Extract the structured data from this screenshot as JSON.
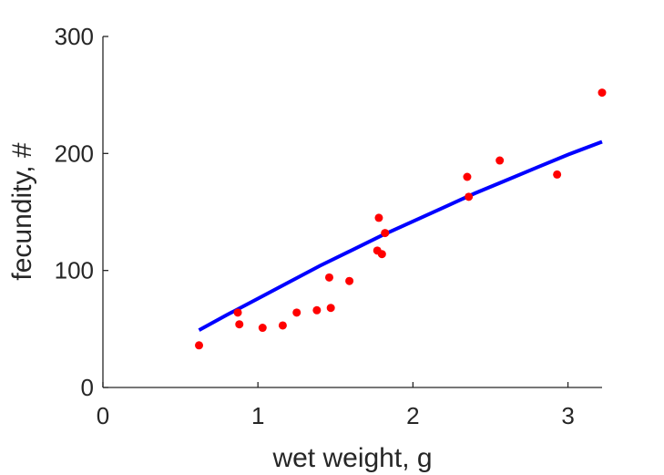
{
  "chart_data": {
    "type": "scatter",
    "xlabel": "wet weight, g",
    "ylabel": "fecundity, #",
    "xlim": [
      0,
      3.22
    ],
    "ylim": [
      0,
      300
    ],
    "xticks": [
      0,
      1,
      2,
      3
    ],
    "yticks": [
      0,
      100,
      200,
      300
    ],
    "grid": false,
    "box": false,
    "series": [
      {
        "kind": "points",
        "color": "#ff0000",
        "x": [
          0.62,
          0.87,
          0.88,
          1.03,
          1.16,
          1.25,
          1.38,
          1.46,
          1.47,
          1.59,
          1.77,
          1.78,
          1.8,
          1.82,
          2.35,
          2.36,
          2.56,
          2.93,
          3.22
        ],
        "y": [
          36,
          64,
          54,
          51,
          53,
          64,
          66,
          94,
          68,
          91,
          117,
          145,
          114,
          132,
          180,
          163,
          194,
          182,
          252
        ]
      },
      {
        "kind": "curve",
        "color": "#0000ff",
        "x": [
          0.62,
          0.8,
          1.0,
          1.2,
          1.4,
          1.6,
          1.8,
          2.0,
          2.2,
          2.4,
          2.6,
          2.8,
          3.0,
          3.22
        ],
        "y": [
          49,
          62,
          76,
          90,
          104,
          117,
          130,
          142,
          154,
          166,
          177,
          188,
          199,
          210
        ]
      }
    ]
  }
}
